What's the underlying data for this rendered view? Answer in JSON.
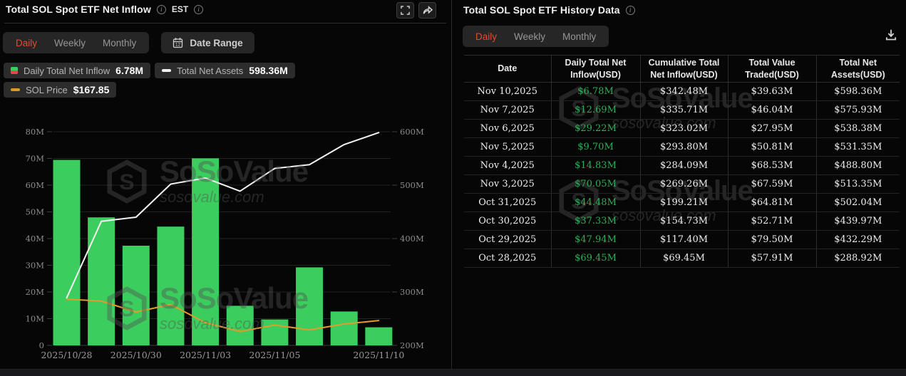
{
  "brand": {
    "name": "SoSoValue",
    "domain": "sosovalue.com"
  },
  "left_panel": {
    "title": "Total SOL Spot ETF Net Inflow",
    "timezone": "EST",
    "tabs": [
      "Daily",
      "Weekly",
      "Monthly"
    ],
    "active_tab": "Daily",
    "date_range_label": "Date Range",
    "legend": [
      {
        "label": "Daily Total Net Inflow",
        "value": "6.78M",
        "icon": "candle-green-red"
      },
      {
        "label": "Total Net Assets",
        "value": "598.36M",
        "icon": "white-dash"
      },
      {
        "label": "SOL Price",
        "value": "$167.85",
        "icon": "orange-dash"
      }
    ]
  },
  "chart_data": {
    "type": "bar",
    "subtype": "combo-bar-line",
    "x_dates": [
      "2025/10/28",
      "2025/10/29",
      "2025/10/30",
      "2025/10/31",
      "2025/11/03",
      "2025/11/04",
      "2025/11/05",
      "2025/11/06",
      "2025/11/07",
      "2025/11/10"
    ],
    "x_tick_labels": [
      "2025/10/28",
      "2025/10/30",
      "2025/11/03",
      "2025/11/05",
      "2025/11/10"
    ],
    "x_tick_indices": [
      0,
      2,
      4,
      6,
      9
    ],
    "series": [
      {
        "name": "Daily Total Net Inflow",
        "type": "bar",
        "axis": "left",
        "unit": "M USD",
        "color": "#3bcd5e",
        "values": [
          69.45,
          47.94,
          37.33,
          44.48,
          70.05,
          14.83,
          9.7,
          29.22,
          12.69,
          6.78
        ]
      },
      {
        "name": "Total Net Assets",
        "type": "line",
        "axis": "right",
        "unit": "M USD",
        "color": "#f2f2f2",
        "values": [
          288.92,
          432.29,
          439.97,
          502.04,
          513.35,
          488.8,
          531.35,
          538.38,
          575.93,
          598.36
        ]
      },
      {
        "name": "SOL Price",
        "type": "line",
        "axis": "hidden",
        "color": "#e39b2d",
        "last_value": "$167.85",
        "values_left_axis_equiv": [
          17.3,
          16.6,
          12.5,
          15.3,
          8.5,
          5.2,
          7.6,
          5.8,
          8.0,
          9.3
        ]
      }
    ],
    "left_axis": {
      "min": 0,
      "max": 80,
      "ticks": [
        "0",
        "10M",
        "20M",
        "30M",
        "40M",
        "50M",
        "60M",
        "70M",
        "80M"
      ]
    },
    "right_axis": {
      "min": 200,
      "max": 600,
      "ticks": [
        "200M",
        "300M",
        "400M",
        "500M",
        "600M"
      ]
    },
    "grid": true,
    "legend_position": "top-left"
  },
  "right_panel": {
    "title": "Total SOL Spot ETF History Data",
    "tabs": [
      "Daily",
      "Weekly",
      "Monthly"
    ],
    "active_tab": "Daily"
  },
  "table": {
    "columns": [
      "Date",
      "Daily Total Net Inflow(USD)",
      "Cumulative Total Net Inflow(USD)",
      "Total Value Traded(USD)",
      "Total Net Assets(USD)"
    ],
    "rows": [
      [
        "Nov 10,2025",
        "$6.78M",
        "$342.48M",
        "$39.63M",
        "$598.36M"
      ],
      [
        "Nov 7,2025",
        "$12.69M",
        "$335.71M",
        "$46.04M",
        "$575.93M"
      ],
      [
        "Nov 6,2025",
        "$29.22M",
        "$323.02M",
        "$27.95M",
        "$538.38M"
      ],
      [
        "Nov 5,2025",
        "$9.70M",
        "$293.80M",
        "$50.81M",
        "$531.35M"
      ],
      [
        "Nov 4,2025",
        "$14.83M",
        "$284.09M",
        "$68.53M",
        "$488.80M"
      ],
      [
        "Nov 3,2025",
        "$70.05M",
        "$269.26M",
        "$67.59M",
        "$513.35M"
      ],
      [
        "Oct 31,2025",
        "$44.48M",
        "$199.21M",
        "$64.81M",
        "$502.04M"
      ],
      [
        "Oct 30,2025",
        "$37.33M",
        "$154.73M",
        "$52.71M",
        "$439.97M"
      ],
      [
        "Oct 29,2025",
        "$47.94M",
        "$117.40M",
        "$79.50M",
        "$432.29M"
      ],
      [
        "Oct 28,2025",
        "$69.45M",
        "$69.45M",
        "$57.91M",
        "$288.92M"
      ]
    ]
  },
  "colors": {
    "accent_active_tab": "#e14b31",
    "bar_green": "#3bcd5e",
    "table_green": "#2fae58",
    "sol_price_orange": "#e39b2d",
    "net_assets_line": "#f2f2f2",
    "legend_red": "#e3484d"
  }
}
